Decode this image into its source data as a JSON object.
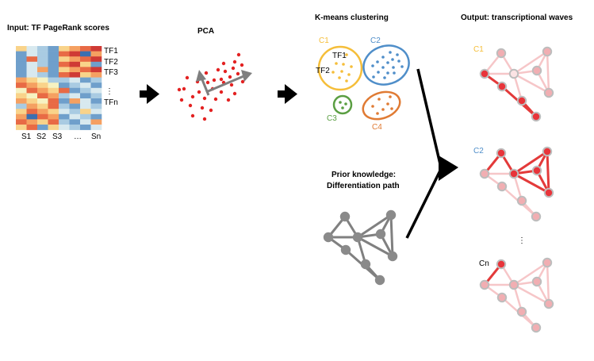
{
  "titles": {
    "input": "Input: TF PageRank scores",
    "pca": "PCA",
    "kmeans": "K-means clustering",
    "output": "Output: transcriptional waves",
    "prior_line1": "Prior knowledge:",
    "prior_line2": "Differentiation path"
  },
  "heatmap": {
    "row_labels": [
      "TF1",
      "TF2",
      "TF3",
      "⋮",
      "TFn"
    ],
    "col_labels": [
      "S1",
      "S2",
      "S3",
      "…",
      "Sn"
    ]
  },
  "clusters": [
    {
      "label": "C1",
      "color": "#f5be3a",
      "members": [
        "TF1",
        "TF2"
      ]
    },
    {
      "label": "C2",
      "color": "#4f8ec9"
    },
    {
      "label": "C3",
      "color": "#5a9e42"
    },
    {
      "label": "C4",
      "color": "#e07b34"
    }
  ],
  "waves": [
    {
      "label": "C1",
      "color": "#f5be3a"
    },
    {
      "label": "C2",
      "color": "#4f8ec9"
    },
    {
      "label": "⋮",
      "color": "#000000"
    },
    {
      "label": "Cn",
      "color": "#000000"
    }
  ],
  "colors": {
    "active_node": "#e8343a",
    "active_edge": "#e33a3a",
    "faded_node": "#f1aeb2",
    "faded_edge": "#f6c6c8",
    "gray_node": "#8a8a8a",
    "gray_edge": "#808080",
    "pca_dots": "#e32222"
  }
}
